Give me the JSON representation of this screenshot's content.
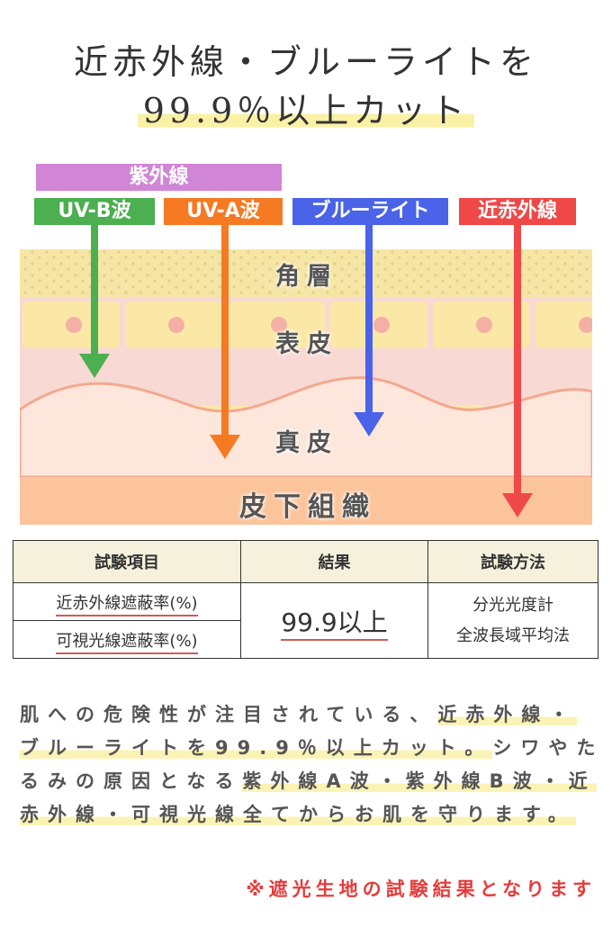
{
  "title": {
    "line1": "近赤外線・ブルーライトを",
    "line2": "99.9％以上カット"
  },
  "diagram": {
    "group_label": "紫外線",
    "rays": [
      {
        "label": "UV-B波",
        "color": "#4caf50"
      },
      {
        "label": "UV-A波",
        "color": "#f57a22"
      },
      {
        "label": "ブルーライト",
        "color": "#4a63e8"
      },
      {
        "label": "近赤外線",
        "color": "#ef4848"
      }
    ],
    "group_color": "#d185d6",
    "layers": [
      "角層",
      "表皮",
      "真皮",
      "皮下組織"
    ]
  },
  "table": {
    "headers": [
      "試験項目",
      "結果",
      "試験方法"
    ],
    "items": [
      "近赤外線遮蔽率(%)",
      "可視光線遮蔽率(%)"
    ],
    "result": "99.9以上",
    "method": [
      "分光光度計",
      "全波長域平均法"
    ]
  },
  "description": {
    "part1": "肌への危険性が注目されている、",
    "part2": "近赤外線・ブルーライトを99.9％以上カット。",
    "part3": "シワやたるみの原因となる",
    "part4": "紫外線A波・紫外線B波・近赤外線・可視光線全てからお肌を守ります。"
  },
  "note": "※遮光生地の試験結果となります"
}
